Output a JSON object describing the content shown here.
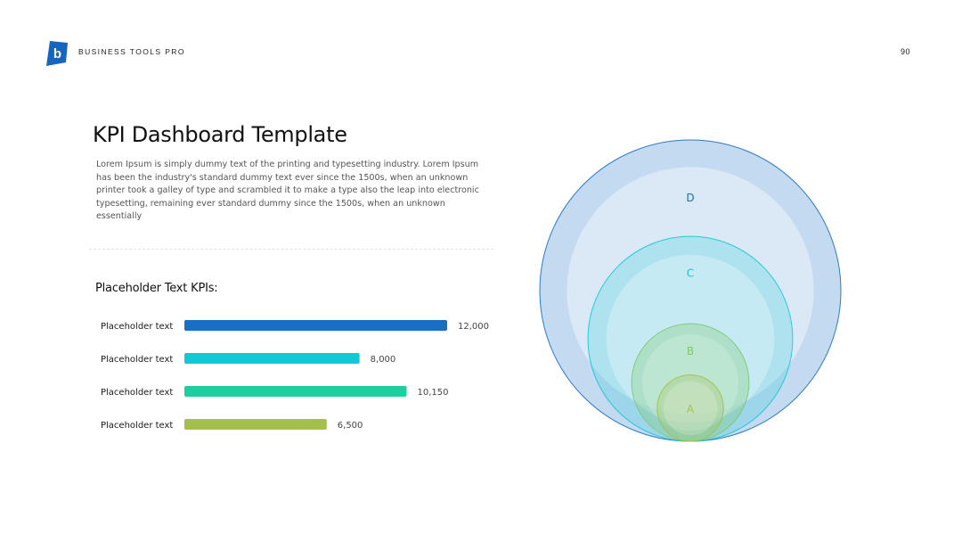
{
  "header": {
    "brand": "BUSINESS TOOLS PRO",
    "page_number": "90",
    "logo_letter": "b",
    "logo_color": "#1565c0"
  },
  "main": {
    "title": "KPI Dashboard Template",
    "description": "Lorem Ipsum is simply dummy text of the printing and typesetting industry. Lorem Ipsum has been the industry's standard dummy text ever since the 1500s, when an unknown printer took a galley of type and scrambled it to make a type also the leap into electronic typesetting, remaining ever standard dummy since the 1500s, when an unknown essentially",
    "kpi_heading": "Placeholder Text KPIs:"
  },
  "chart_data": [
    {
      "type": "bar",
      "orientation": "horizontal",
      "categories": [
        "Placeholder text",
        "Placeholder text",
        "Placeholder text",
        "Placeholder text"
      ],
      "values": [
        12000,
        8000,
        10150,
        6500
      ],
      "value_labels": [
        "12,000",
        "8,000",
        "10,150",
        "6,500"
      ],
      "colors": [
        "#1a6fc4",
        "#12c8d6",
        "#1ecf9e",
        "#a2c04a"
      ],
      "xlim": [
        0,
        12000
      ],
      "grid": false
    },
    {
      "type": "nested-circles",
      "labels": [
        "A",
        "B",
        "C",
        "D"
      ],
      "relative_sizes": [
        0.22,
        0.39,
        0.68,
        1.0
      ],
      "colors": [
        "#a2c04a",
        "#7cc96a",
        "#12c8d6",
        "#1a6fc4"
      ],
      "label_colors": [
        "#a8c24c",
        "#82c86a",
        "#1fbfd0",
        "#1a6fc4"
      ]
    }
  ]
}
